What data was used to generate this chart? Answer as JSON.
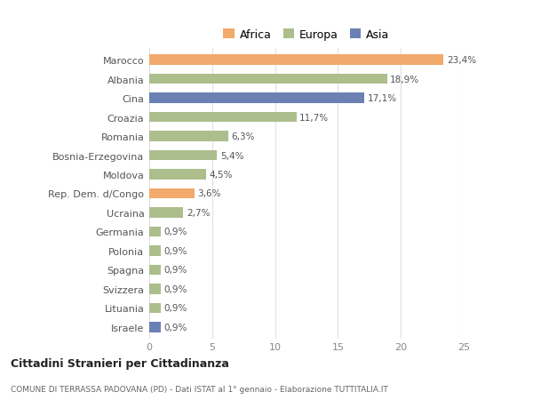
{
  "countries": [
    "Marocco",
    "Albania",
    "Cina",
    "Croazia",
    "Romania",
    "Bosnia-Erzegovina",
    "Moldova",
    "Rep. Dem. d/Congo",
    "Ucraina",
    "Germania",
    "Polonia",
    "Spagna",
    "Svizzera",
    "Lituania",
    "Israele"
  ],
  "values": [
    23.4,
    18.9,
    17.1,
    11.7,
    6.3,
    5.4,
    4.5,
    3.6,
    2.7,
    0.9,
    0.9,
    0.9,
    0.9,
    0.9,
    0.9
  ],
  "labels": [
    "23,4%",
    "18,9%",
    "17,1%",
    "11,7%",
    "6,3%",
    "5,4%",
    "4,5%",
    "3,6%",
    "2,7%",
    "0,9%",
    "0,9%",
    "0,9%",
    "0,9%",
    "0,9%",
    "0,9%"
  ],
  "colors": [
    "#F2A96C",
    "#ABBE8C",
    "#6B80B3",
    "#ABBE8C",
    "#ABBE8C",
    "#ABBE8C",
    "#ABBE8C",
    "#F2A96C",
    "#ABBE8C",
    "#ABBE8C",
    "#ABBE8C",
    "#ABBE8C",
    "#ABBE8C",
    "#ABBE8C",
    "#6B80B3"
  ],
  "continent_labels": [
    "Africa",
    "Europa",
    "Asia"
  ],
  "continent_colors": [
    "#F2A96C",
    "#ABBE8C",
    "#6B80B3"
  ],
  "title": "Cittadini Stranieri per Cittadinanza",
  "subtitle": "COMUNE DI TERRASSA PADOVANA (PD) - Dati ISTAT al 1° gennaio - Elaborazione TUTTITALIA.IT",
  "xlim": [
    0,
    25
  ],
  "xticks": [
    0,
    5,
    10,
    15,
    20,
    25
  ],
  "background_color": "#ffffff",
  "grid_color": "#e0e0e0",
  "bar_height": 0.55
}
